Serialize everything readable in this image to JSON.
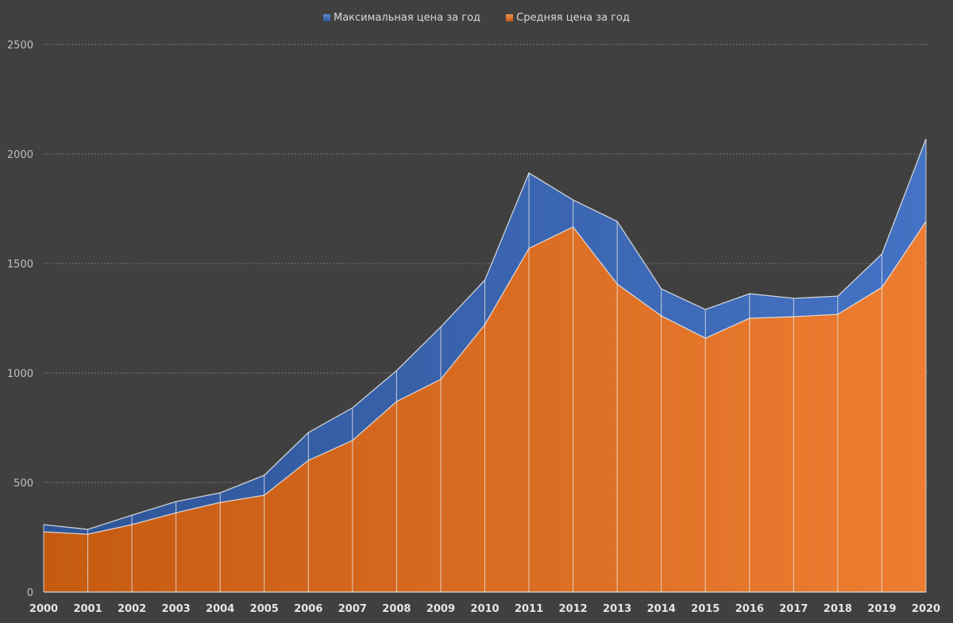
{
  "chart_data": {
    "type": "area",
    "title": "",
    "xlabel": "",
    "ylabel": "",
    "categories": [
      "2000",
      "2001",
      "2002",
      "2003",
      "2004",
      "2005",
      "2006",
      "2007",
      "2008",
      "2009",
      "2010",
      "2011",
      "2012",
      "2013",
      "2014",
      "2015",
      "2016",
      "2017",
      "2018",
      "2019",
      "2020"
    ],
    "ylim": [
      0,
      2500
    ],
    "yticks": [
      "0",
      "500",
      "1000",
      "1500",
      "2000",
      "2500"
    ],
    "grid": true,
    "legend_position": "top",
    "series": [
      {
        "name": "Максимальная цена за год",
        "color": "#4472c4",
        "values": [
          308,
          286,
          351,
          413,
          453,
          533,
          728,
          841,
          1011,
          1210,
          1424,
          1913,
          1790,
          1692,
          1384,
          1290,
          1362,
          1341,
          1351,
          1543,
          2069
        ]
      },
      {
        "name": "Средняя цена за год",
        "color": "#ed7d31",
        "values": [
          275,
          264,
          308,
          362,
          409,
          442,
          601,
          692,
          870,
          971,
          1221,
          1569,
          1667,
          1406,
          1261,
          1159,
          1250,
          1257,
          1268,
          1391,
          1692
        ]
      }
    ]
  }
}
